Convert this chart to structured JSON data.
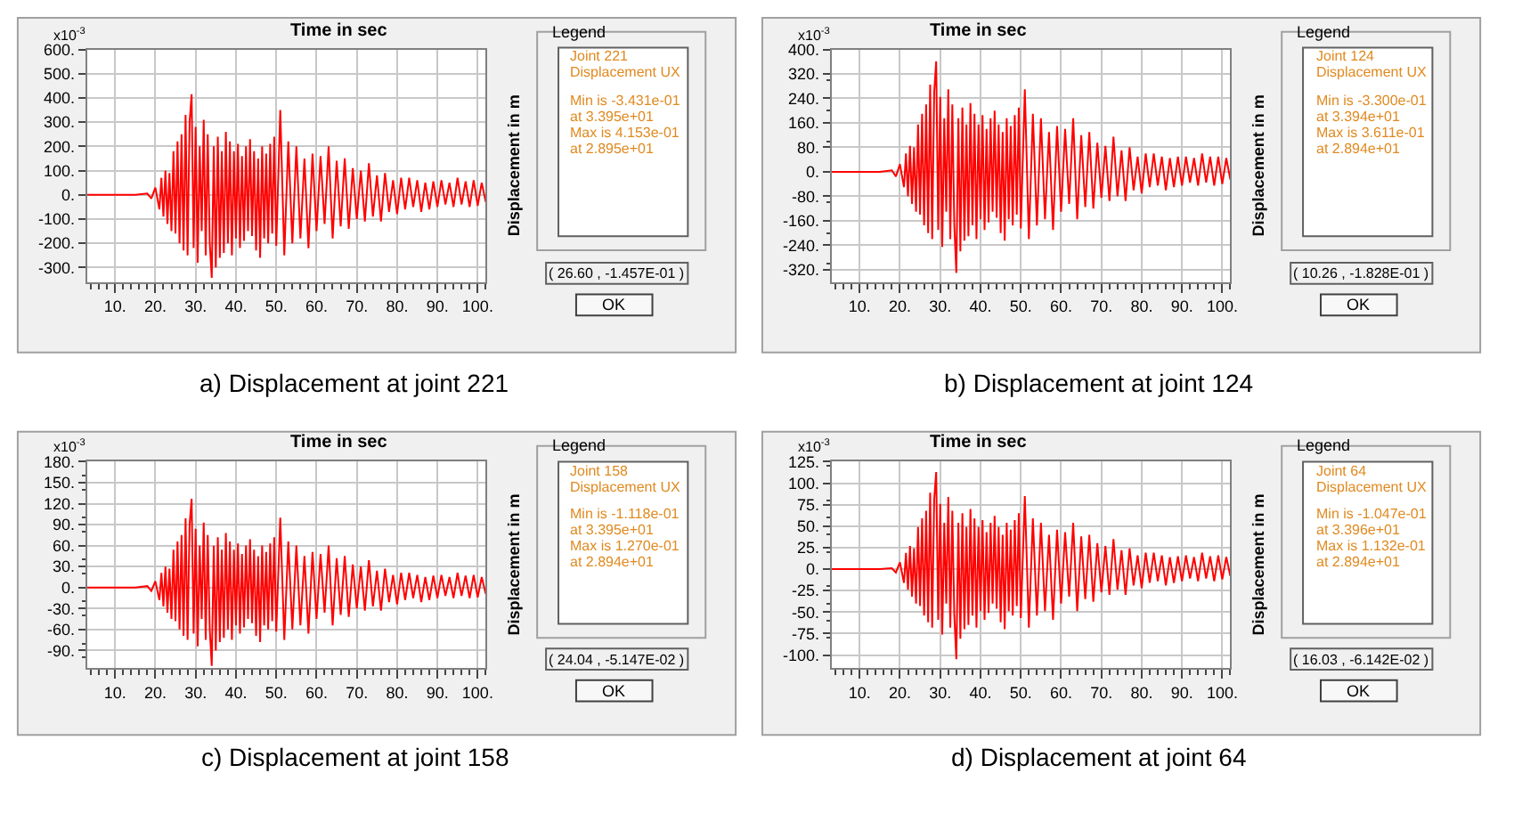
{
  "chart_data": [
    {
      "type": "line",
      "xlabel": "Time in sec",
      "ylabel": "Displacement in m",
      "xlim": [
        3,
        102
      ],
      "ylim": [
        -360,
        600
      ],
      "grid": true,
      "marker": "none",
      "line_style": "solid",
      "xticks": [
        {
          "value": 10,
          "label": "10."
        },
        {
          "value": 20,
          "label": "20."
        },
        {
          "value": 30,
          "label": "30."
        },
        {
          "value": 40,
          "label": "40."
        },
        {
          "value": 50,
          "label": "50."
        },
        {
          "value": 60,
          "label": "60."
        },
        {
          "value": 70,
          "label": "70."
        },
        {
          "value": 80,
          "label": "80."
        },
        {
          "value": 90,
          "label": "90."
        },
        {
          "value": 100,
          "label": "100."
        }
      ],
      "yticks": [
        {
          "value": 600,
          "label": "600."
        },
        {
          "value": 500,
          "label": "500."
        },
        {
          "value": 400,
          "label": "400."
        },
        {
          "value": 300,
          "label": "300."
        },
        {
          "value": 200,
          "label": "200."
        },
        {
          "value": 100,
          "label": "100."
        },
        {
          "value": 0,
          "label": "0."
        },
        {
          "value": -100,
          "label": "-100."
        },
        {
          "value": -200,
          "label": "-200."
        },
        {
          "value": -300,
          "label": "-300."
        }
      ],
      "x": [
        3,
        15,
        18,
        19,
        20,
        21,
        21.5,
        22,
        22.5,
        23,
        23.5,
        24,
        24.5,
        25,
        25.5,
        26,
        26.5,
        27,
        27.5,
        28,
        28.5,
        29,
        29.5,
        30,
        30.5,
        31,
        31.5,
        32,
        32.5,
        33,
        33.5,
        34,
        34.5,
        35,
        35.5,
        36,
        36.5,
        37,
        37.5,
        38,
        38.5,
        39,
        39.5,
        40,
        40.5,
        41,
        41.5,
        42,
        42.5,
        43,
        43.5,
        44,
        44.5,
        45,
        45.5,
        46,
        46.5,
        47,
        47.5,
        48,
        48.5,
        49,
        49.5,
        50,
        51,
        52,
        53,
        54,
        55,
        56,
        57,
        58,
        59,
        60,
        61,
        62,
        63,
        64,
        65,
        66,
        67,
        68,
        69,
        70,
        71,
        72,
        73,
        74,
        75,
        76,
        77,
        78,
        79,
        80,
        81,
        82,
        83,
        84,
        85,
        86,
        87,
        88,
        89,
        90,
        91,
        92,
        93,
        94,
        95,
        96,
        97,
        98,
        99,
        100,
        101,
        102
      ],
      "series": [
        {
          "color": "#ff0000",
          "values": [
            0,
            0,
            5,
            -15,
            30,
            -60,
            70,
            -90,
            100,
            -120,
            90,
            -150,
            180,
            -160,
            220,
            -200,
            250,
            -230,
            330,
            -250,
            300,
            415,
            -220,
            280,
            -280,
            200,
            -150,
            310,
            -250,
            250,
            -200,
            -343,
            200,
            -300,
            240,
            -260,
            180,
            -240,
            260,
            -200,
            220,
            -250,
            180,
            -180,
            210,
            -220,
            160,
            -190,
            200,
            -150,
            230,
            -170,
            180,
            -230,
            150,
            -260,
            200,
            -180,
            170,
            -200,
            210,
            -160,
            240,
            -210,
            350,
            -250,
            220,
            -200,
            200,
            -180,
            150,
            -220,
            170,
            -150,
            160,
            -120,
            200,
            -180,
            140,
            -130,
            150,
            -140,
            110,
            -100,
            100,
            -110,
            130,
            -90,
            80,
            -110,
            90,
            -70,
            60,
            -80,
            70,
            -60,
            70,
            -50,
            60,
            -70,
            50,
            -60,
            55,
            -50,
            60,
            -40,
            50,
            -50,
            70,
            -40,
            55,
            -50,
            60,
            -45,
            50,
            -30
          ]
        }
      ],
      "annotations": [
        "x10$^{-3}$",
        "Legend",
        "Joint 221",
        "Displacement UX",
        "Min is -3.431e-01",
        "at 3.395e+01",
        "Max is 4.153e-01",
        "at 2.895e+01",
        "( 26.60 , -1.457E-01 )",
        "OK",
        "a) Displacement at joint 221"
      ]
    },
    {
      "type": "line",
      "xlabel": "Time in sec",
      "ylabel": "Displacement in m",
      "xlim": [
        3,
        102
      ],
      "ylim": [
        -360,
        400
      ],
      "grid": true,
      "marker": "none",
      "line_style": "solid",
      "xticks": [
        {
          "value": 10,
          "label": "10."
        },
        {
          "value": 20,
          "label": "20."
        },
        {
          "value": 30,
          "label": "30."
        },
        {
          "value": 40,
          "label": "40."
        },
        {
          "value": 50,
          "label": "50."
        },
        {
          "value": 60,
          "label": "60."
        },
        {
          "value": 70,
          "label": "70."
        },
        {
          "value": 80,
          "label": "80."
        },
        {
          "value": 90,
          "label": "90."
        },
        {
          "value": 100,
          "label": "100."
        }
      ],
      "yticks": [
        {
          "value": 400,
          "label": "400."
        },
        {
          "value": 320,
          "label": "320."
        },
        {
          "value": 240,
          "label": "240."
        },
        {
          "value": 160,
          "label": "160."
        },
        {
          "value": 80,
          "label": "80."
        },
        {
          "value": 0,
          "label": "0."
        },
        {
          "value": -80,
          "label": "-80."
        },
        {
          "value": -160,
          "label": "-160."
        },
        {
          "value": -240,
          "label": "-240."
        },
        {
          "value": -320,
          "label": "-320."
        }
      ],
      "x": [
        3,
        15,
        18,
        19,
        20,
        21,
        21.5,
        22,
        22.5,
        23,
        23.5,
        24,
        24.5,
        25,
        25.5,
        26,
        26.5,
        27,
        27.5,
        28,
        28.5,
        29,
        29.5,
        30,
        30.5,
        31,
        31.5,
        32,
        32.5,
        33,
        33.5,
        34,
        34.5,
        35,
        35.5,
        36,
        36.5,
        37,
        37.5,
        38,
        38.5,
        39,
        39.5,
        40,
        40.5,
        41,
        41.5,
        42,
        42.5,
        43,
        43.5,
        44,
        44.5,
        45,
        45.5,
        46,
        46.5,
        47,
        47.5,
        48,
        48.5,
        49,
        49.5,
        50,
        51,
        52,
        53,
        54,
        55,
        56,
        57,
        58,
        59,
        60,
        61,
        62,
        63,
        64,
        65,
        66,
        67,
        68,
        69,
        70,
        71,
        72,
        73,
        74,
        75,
        76,
        77,
        78,
        79,
        80,
        81,
        82,
        83,
        84,
        85,
        86,
        87,
        88,
        89,
        90,
        91,
        92,
        93,
        94,
        95,
        96,
        97,
        98,
        99,
        100,
        101,
        102
      ],
      "series": [
        {
          "color": "#ff0000",
          "values": [
            0,
            0,
            5,
            -15,
            25,
            -50,
            60,
            -80,
            85,
            -105,
            80,
            -130,
            155,
            -140,
            190,
            -175,
            220,
            -200,
            285,
            -220,
            260,
            361,
            -190,
            245,
            -245,
            175,
            -130,
            270,
            -220,
            220,
            -175,
            -330,
            175,
            -260,
            210,
            -225,
            155,
            -210,
            225,
            -175,
            190,
            -220,
            155,
            -155,
            185,
            -190,
            140,
            -165,
            175,
            -130,
            200,
            -150,
            155,
            -200,
            130,
            -225,
            175,
            -155,
            150,
            -175,
            185,
            -140,
            210,
            -185,
            270,
            -220,
            190,
            -175,
            175,
            -155,
            130,
            -190,
            150,
            -130,
            140,
            -105,
            175,
            -155,
            120,
            -115,
            130,
            -120,
            95,
            -85,
            85,
            -95,
            115,
            -80,
            70,
            -95,
            80,
            -60,
            50,
            -70,
            60,
            -50,
            60,
            -45,
            50,
            -60,
            45,
            -50,
            50,
            -45,
            50,
            -35,
            45,
            -45,
            60,
            -35,
            50,
            -45,
            50,
            -40,
            45,
            -25
          ]
        }
      ],
      "annotations": [
        "x10$^{-3}$",
        "Legend",
        "Joint 124",
        "Displacement UX",
        "Min is -3.300e-01",
        "at 3.394e+01",
        "Max is 3.611e-01",
        "at 2.894e+01",
        "( 10.26 , -1.828E-01 )",
        "OK",
        "b) Displacement at joint 124"
      ]
    },
    {
      "type": "line",
      "xlabel": "Time in sec",
      "ylabel": "Displacement in m",
      "xlim": [
        3,
        102
      ],
      "ylim": [
        -115,
        180
      ],
      "grid": true,
      "marker": "none",
      "line_style": "solid",
      "xticks": [
        {
          "value": 10,
          "label": "10."
        },
        {
          "value": 20,
          "label": "20."
        },
        {
          "value": 30,
          "label": "30."
        },
        {
          "value": 40,
          "label": "40."
        },
        {
          "value": 50,
          "label": "50."
        },
        {
          "value": 60,
          "label": "60."
        },
        {
          "value": 70,
          "label": "70."
        },
        {
          "value": 80,
          "label": "80."
        },
        {
          "value": 90,
          "label": "90."
        },
        {
          "value": 100,
          "label": "100."
        }
      ],
      "yticks": [
        {
          "value": 180,
          "label": "180."
        },
        {
          "value": 150,
          "label": "150."
        },
        {
          "value": 120,
          "label": "120."
        },
        {
          "value": 90,
          "label": "90."
        },
        {
          "value": 60,
          "label": "60."
        },
        {
          "value": 30,
          "label": "30."
        },
        {
          "value": 0,
          "label": "0."
        },
        {
          "value": -30,
          "label": "-30."
        },
        {
          "value": -60,
          "label": "-60."
        },
        {
          "value": -90,
          "label": "-90."
        }
      ],
      "x": [
        3,
        15,
        18,
        19,
        20,
        21,
        21.5,
        22,
        22.5,
        23,
        23.5,
        24,
        24.5,
        25,
        25.5,
        26,
        26.5,
        27,
        27.5,
        28,
        28.5,
        29,
        29.5,
        30,
        30.5,
        31,
        31.5,
        32,
        32.5,
        33,
        33.5,
        34,
        34.5,
        35,
        35.5,
        36,
        36.5,
        37,
        37.5,
        38,
        38.5,
        39,
        39.5,
        40,
        40.5,
        41,
        41.5,
        42,
        42.5,
        43,
        43.5,
        44,
        44.5,
        45,
        45.5,
        46,
        46.5,
        47,
        47.5,
        48,
        48.5,
        49,
        49.5,
        50,
        51,
        52,
        53,
        54,
        55,
        56,
        57,
        58,
        59,
        60,
        61,
        62,
        63,
        64,
        65,
        66,
        67,
        68,
        69,
        70,
        71,
        72,
        73,
        74,
        75,
        76,
        77,
        78,
        79,
        80,
        81,
        82,
        83,
        84,
        85,
        86,
        87,
        88,
        89,
        90,
        91,
        92,
        93,
        94,
        95,
        96,
        97,
        98,
        99,
        100,
        101,
        102
      ],
      "series": [
        {
          "color": "#ff0000",
          "values": [
            0,
            0,
            2,
            -5,
            9,
            -18,
            21,
            -27,
            30,
            -36,
            27,
            -45,
            54,
            -48,
            66,
            -60,
            75,
            -69,
            99,
            -75,
            90,
            127,
            -66,
            84,
            -84,
            60,
            -45,
            93,
            -75,
            75,
            -60,
            -112,
            60,
            -90,
            72,
            -78,
            54,
            -72,
            78,
            -60,
            66,
            -75,
            54,
            -54,
            63,
            -66,
            48,
            -57,
            60,
            -45,
            69,
            -51,
            54,
            -69,
            45,
            -78,
            60,
            -54,
            51,
            -60,
            63,
            -48,
            72,
            -63,
            100,
            -75,
            66,
            -60,
            60,
            -54,
            45,
            -66,
            51,
            -45,
            48,
            -36,
            60,
            -54,
            42,
            -39,
            45,
            -42,
            33,
            -30,
            30,
            -33,
            39,
            -27,
            24,
            -33,
            27,
            -21,
            18,
            -24,
            21,
            -18,
            21,
            -15,
            18,
            -21,
            15,
            -18,
            17,
            -15,
            18,
            -12,
            15,
            -15,
            21,
            -12,
            17,
            -15,
            18,
            -14,
            15,
            -9
          ]
        }
      ],
      "annotations": [
        "x10$^{-3}$",
        "Legend",
        "Joint 158",
        "Displacement UX",
        "Min is -1.118e-01",
        "at 3.395e+01",
        "Max is 1.270e-01",
        "at 2.894e+01",
        "( 24.04 , -5.147E-02 )",
        "OK",
        "c) Displacement at joint 158"
      ]
    },
    {
      "type": "line",
      "xlabel": "Time in sec",
      "ylabel": "Displacement in m",
      "xlim": [
        3,
        102
      ],
      "ylim": [
        -115,
        125
      ],
      "grid": true,
      "marker": "none",
      "line_style": "solid",
      "xticks": [
        {
          "value": 10,
          "label": "10."
        },
        {
          "value": 20,
          "label": "20."
        },
        {
          "value": 30,
          "label": "30."
        },
        {
          "value": 40,
          "label": "40."
        },
        {
          "value": 50,
          "label": "50."
        },
        {
          "value": 60,
          "label": "60."
        },
        {
          "value": 70,
          "label": "70."
        },
        {
          "value": 80,
          "label": "80."
        },
        {
          "value": 90,
          "label": "90."
        },
        {
          "value": 100,
          "label": "100."
        }
      ],
      "yticks": [
        {
          "value": 125,
          "label": "125."
        },
        {
          "value": 100,
          "label": "100."
        },
        {
          "value": 75,
          "label": "75."
        },
        {
          "value": 50,
          "label": "50."
        },
        {
          "value": 25,
          "label": "25."
        },
        {
          "value": 0,
          "label": "0."
        },
        {
          "value": -25,
          "label": "-25."
        },
        {
          "value": -50,
          "label": "-50."
        },
        {
          "value": -75,
          "label": "-75."
        },
        {
          "value": -100,
          "label": "-100."
        }
      ],
      "x": [
        3,
        15,
        18,
        19,
        20,
        21,
        21.5,
        22,
        22.5,
        23,
        23.5,
        24,
        24.5,
        25,
        25.5,
        26,
        26.5,
        27,
        27.5,
        28,
        28.5,
        29,
        29.5,
        30,
        30.5,
        31,
        31.5,
        32,
        32.5,
        33,
        33.5,
        34,
        34.5,
        35,
        35.5,
        36,
        36.5,
        37,
        37.5,
        38,
        38.5,
        39,
        39.5,
        40,
        40.5,
        41,
        41.5,
        42,
        42.5,
        43,
        43.5,
        44,
        44.5,
        45,
        45.5,
        46,
        46.5,
        47,
        47.5,
        48,
        48.5,
        49,
        49.5,
        50,
        51,
        52,
        53,
        54,
        55,
        56,
        57,
        58,
        59,
        60,
        61,
        62,
        63,
        64,
        65,
        66,
        67,
        68,
        69,
        70,
        71,
        72,
        73,
        74,
        75,
        76,
        77,
        78,
        79,
        80,
        81,
        82,
        83,
        84,
        85,
        86,
        87,
        88,
        89,
        90,
        91,
        92,
        93,
        94,
        95,
        96,
        97,
        98,
        99,
        100,
        101,
        102
      ],
      "series": [
        {
          "color": "#ff0000",
          "values": [
            0,
            0,
            1,
            -4,
            8,
            -16,
            19,
            -24,
            27,
            -32,
            24,
            -40,
            49,
            -43,
            59,
            -54,
            68,
            -62,
            89,
            -68,
            81,
            113,
            -59,
            76,
            -76,
            54,
            -40,
            84,
            -68,
            68,
            -54,
            -105,
            54,
            -81,
            65,
            -70,
            49,
            -65,
            70,
            -54,
            59,
            -68,
            49,
            -49,
            57,
            -59,
            43,
            -51,
            54,
            -40,
            62,
            -46,
            49,
            -62,
            40,
            -70,
            54,
            -49,
            46,
            -54,
            57,
            -43,
            65,
            -57,
            85,
            -68,
            59,
            -54,
            54,
            -49,
            40,
            -59,
            46,
            -40,
            43,
            -32,
            54,
            -49,
            38,
            -35,
            40,
            -38,
            30,
            -27,
            27,
            -30,
            35,
            -24,
            22,
            -30,
            24,
            -19,
            16,
            -22,
            19,
            -16,
            19,
            -14,
            16,
            -19,
            14,
            -16,
            15,
            -14,
            16,
            -11,
            14,
            -14,
            19,
            -11,
            15,
            -14,
            16,
            -12,
            14,
            -8
          ]
        }
      ],
      "annotations": [
        "x10$^{-3}$",
        "Legend",
        "Joint 64",
        "Displacement UX",
        "Min is -1.047e-01",
        "at 3.396e+01",
        "Max is 1.132e-01",
        "at 2.894e+01",
        "( 16.03 , -6.142E-02 )",
        "OK",
        "d) Displacement at joint 64"
      ]
    }
  ]
}
